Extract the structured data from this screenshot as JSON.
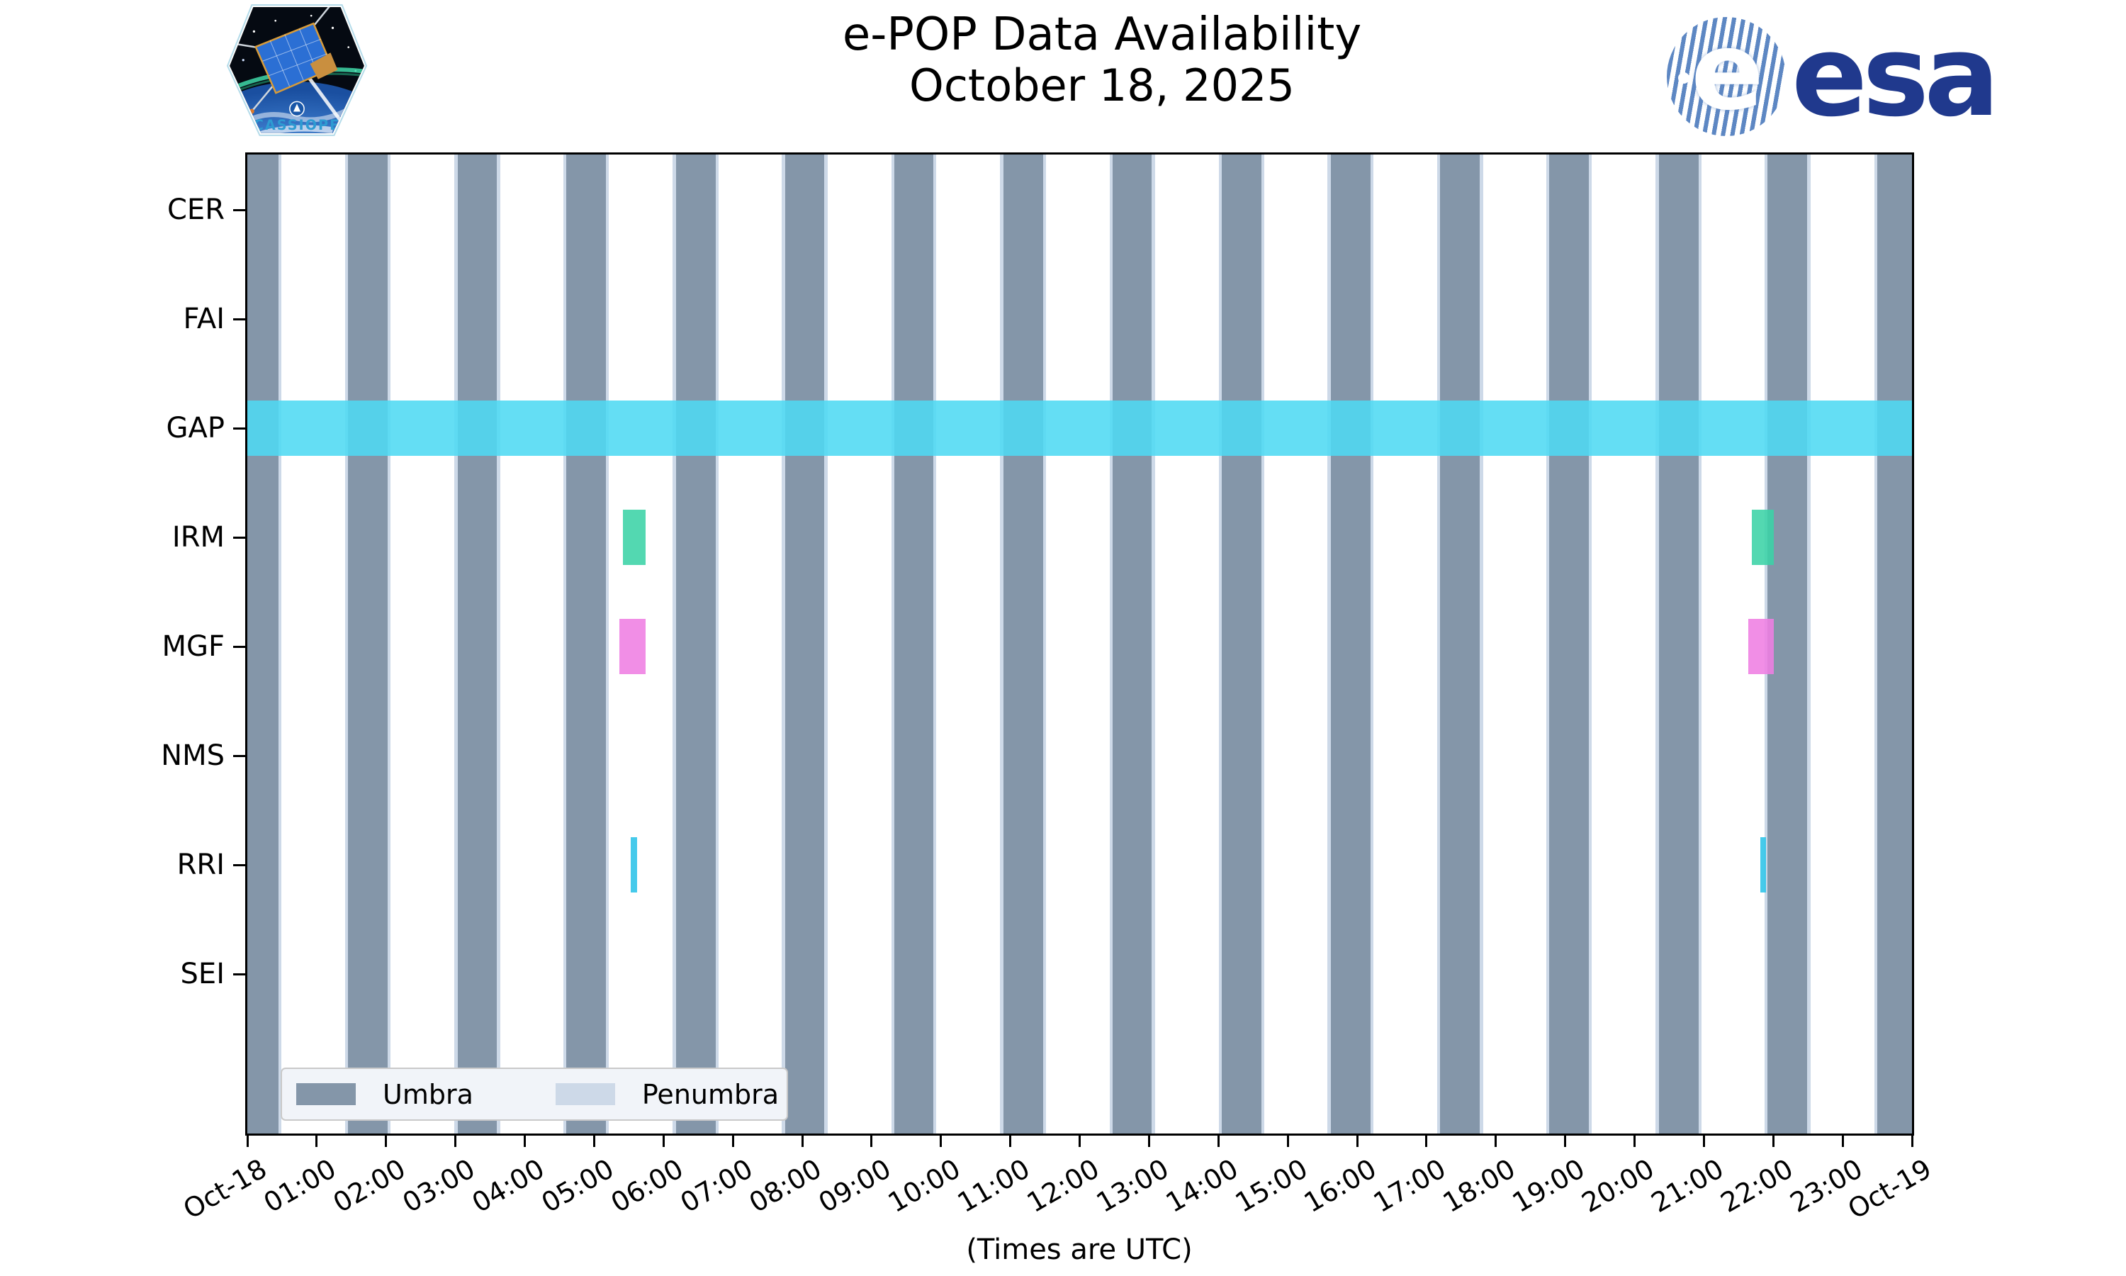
{
  "header": {
    "title": "e-POP Data Availability",
    "subtitle": "October 18, 2025",
    "cassiope_label": "CASSIOPE",
    "esa_label": "esa"
  },
  "footer_note": "(Times are UTC)",
  "legend": {
    "items": [
      {
        "label": "Umbra",
        "color": "#8496a9"
      },
      {
        "label": "Penumbra",
        "color": "#cdd9e8"
      }
    ]
  },
  "chart_data": {
    "type": "timeline",
    "title": "e-POP Data Availability October 18, 2025",
    "x_axis": {
      "label": "(Times are UTC)",
      "hours_range": [
        0,
        24
      ],
      "ticks": [
        "Oct-18",
        "01:00",
        "02:00",
        "03:00",
        "04:00",
        "05:00",
        "06:00",
        "07:00",
        "08:00",
        "09:00",
        "10:00",
        "11:00",
        "12:00",
        "13:00",
        "14:00",
        "15:00",
        "16:00",
        "17:00",
        "18:00",
        "19:00",
        "20:00",
        "21:00",
        "22:00",
        "23:00",
        "Oct-19"
      ]
    },
    "y_axis": {
      "categories": [
        "CER",
        "FAI",
        "GAP",
        "IRM",
        "MGF",
        "NMS",
        "RRI",
        "SEI"
      ]
    },
    "colors": {
      "umbra": "#8496a9",
      "penumbra": "#cdd9e8",
      "gap": "#4ed9f2",
      "irm": "#3bd3a6",
      "mgf": "#ef7ee2",
      "rri": "#2cc3e8"
    },
    "umbra_intervals_hours": [
      [
        0.0,
        0.45
      ],
      [
        1.45,
        2.02
      ],
      [
        3.03,
        3.6
      ],
      [
        4.6,
        5.17
      ],
      [
        6.18,
        6.75
      ],
      [
        7.75,
        8.32
      ],
      [
        9.33,
        9.89
      ],
      [
        10.9,
        11.47
      ],
      [
        12.48,
        13.04
      ],
      [
        14.05,
        14.62
      ],
      [
        15.62,
        16.19
      ],
      [
        17.2,
        17.77
      ],
      [
        18.77,
        19.34
      ],
      [
        20.35,
        20.92
      ],
      [
        21.92,
        22.49
      ],
      [
        23.5,
        24.0
      ]
    ],
    "penumbra_flank_width_hours": 0.045,
    "series": [
      {
        "name": "GAP",
        "row": "GAP",
        "color_key": "gap",
        "intervals": [
          [
            0.0,
            24.0
          ]
        ]
      },
      {
        "name": "IRM",
        "row": "IRM",
        "color_key": "irm",
        "intervals": [
          [
            5.41,
            5.74
          ],
          [
            21.69,
            22.01
          ]
        ]
      },
      {
        "name": "MGF",
        "row": "MGF",
        "color_key": "mgf",
        "intervals": [
          [
            5.36,
            5.74
          ],
          [
            21.64,
            22.01
          ]
        ]
      },
      {
        "name": "RRI",
        "row": "RRI",
        "color_key": "rri",
        "intervals": [
          [
            5.53,
            5.62
          ],
          [
            21.81,
            21.89
          ]
        ]
      }
    ]
  }
}
